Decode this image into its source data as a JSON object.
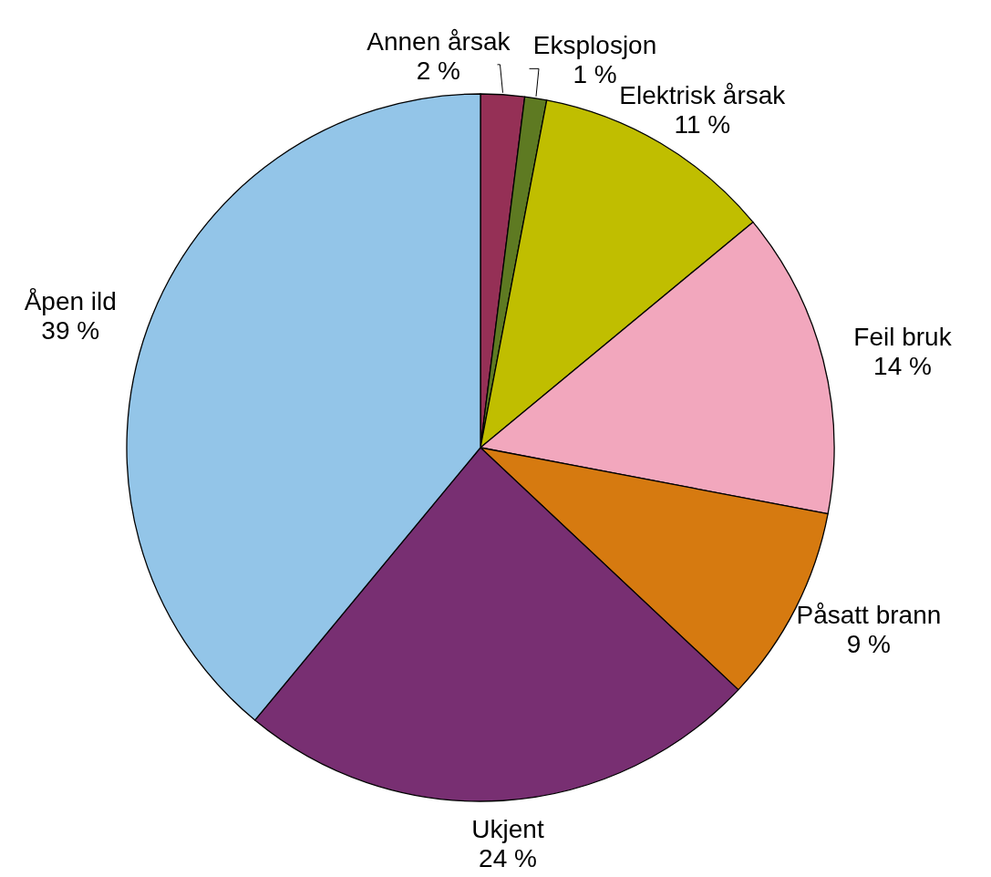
{
  "chart_data": {
    "type": "pie",
    "categories": [
      "Annen årsak",
      "Eksplosjon",
      "Elektrisk årsak",
      "Feil bruk",
      "Påsatt brann",
      "Ukjent",
      "Åpen ild"
    ],
    "values": [
      2,
      1,
      11,
      14,
      9,
      24,
      39
    ],
    "value_labels": [
      "2 %",
      "1 %",
      "11 %",
      "14 %",
      "9 %",
      "24 %",
      "39 %"
    ],
    "colors": [
      "#953056",
      "#5e7a22",
      "#c0be00",
      "#f2a7bd",
      "#d67a10",
      "#782f72",
      "#93c5e8"
    ]
  }
}
